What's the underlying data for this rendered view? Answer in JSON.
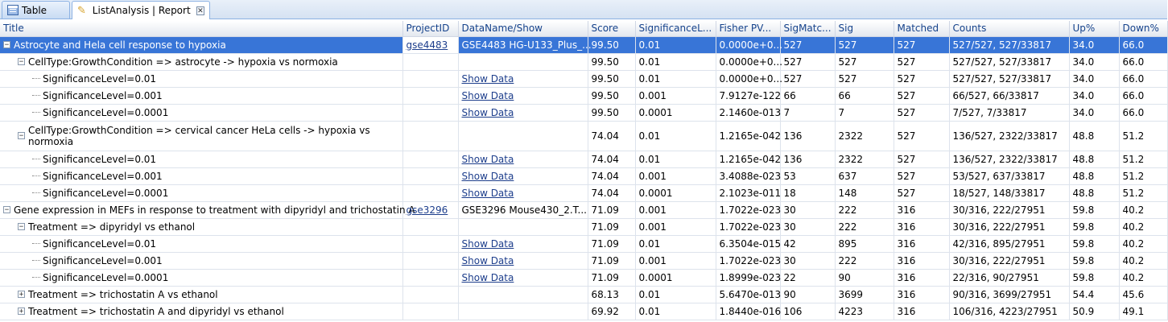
{
  "tabs": [
    {
      "label": "Table",
      "icon": "table-icon"
    },
    {
      "label": "ListAnalysis | Report",
      "icon": "pen-icon",
      "close": "✕"
    }
  ],
  "columns": [
    "Title",
    "ProjectID",
    "DataName/Show",
    "Score",
    "SignificanceL...",
    "Fisher PV...",
    "SigMatc...",
    "Sig",
    "Matched",
    "Counts",
    "Up%",
    "Down%"
  ],
  "rows": [
    {
      "level": 0,
      "expander": "−",
      "title": "Astrocyte and Hela cell response to hypoxia",
      "project": "gse4483",
      "dataname": "GSE4483 HG-U133_Plus_...",
      "score": "99.50",
      "siglevel": "0.01",
      "fisher": "0.0000e+0...",
      "sigmatch": "527",
      "sig": "527",
      "matched": "527",
      "counts": "527/527, 527/33817",
      "up": "34.0",
      "down": "66.0",
      "selected": true
    },
    {
      "level": 1,
      "expander": "−",
      "title": "CellType:GrowthCondition => astrocyte -> hypoxia vs normoxia",
      "project": "",
      "dataname": "",
      "score": "99.50",
      "siglevel": "0.01",
      "fisher": "0.0000e+0...",
      "sigmatch": "527",
      "sig": "527",
      "matched": "527",
      "counts": "527/527, 527/33817",
      "up": "34.0",
      "down": "66.0"
    },
    {
      "level": 2,
      "title": "SignificanceLevel=0.01",
      "project": "",
      "dataname": "Show Data",
      "score": "99.50",
      "siglevel": "0.01",
      "fisher": "0.0000e+0...",
      "sigmatch": "527",
      "sig": "527",
      "matched": "527",
      "counts": "527/527, 527/33817",
      "up": "34.0",
      "down": "66.0"
    },
    {
      "level": 2,
      "title": "SignificanceLevel=0.001",
      "project": "",
      "dataname": "Show Data",
      "score": "99.50",
      "siglevel": "0.001",
      "fisher": "7.9127e-122",
      "sigmatch": "66",
      "sig": "66",
      "matched": "527",
      "counts": "66/527, 66/33817",
      "up": "34.0",
      "down": "66.0"
    },
    {
      "level": 2,
      "title": "SignificanceLevel=0.0001",
      "project": "",
      "dataname": "Show Data",
      "score": "99.50",
      "siglevel": "0.0001",
      "fisher": "2.1460e-013",
      "sigmatch": "7",
      "sig": "7",
      "matched": "527",
      "counts": "7/527, 7/33817",
      "up": "34.0",
      "down": "66.0"
    },
    {
      "level": 1,
      "expander": "−",
      "title": "CellType:GrowthCondition => cervical cancer HeLa cells -> hypoxia vs normoxia",
      "project": "",
      "dataname": "",
      "score": "74.04",
      "siglevel": "0.01",
      "fisher": "1.2165e-042",
      "sigmatch": "136",
      "sig": "2322",
      "matched": "527",
      "counts": "136/527, 2322/33817",
      "up": "48.8",
      "down": "51.2",
      "tall": true
    },
    {
      "level": 2,
      "title": "SignificanceLevel=0.01",
      "project": "",
      "dataname": "Show Data",
      "score": "74.04",
      "siglevel": "0.01",
      "fisher": "1.2165e-042",
      "sigmatch": "136",
      "sig": "2322",
      "matched": "527",
      "counts": "136/527, 2322/33817",
      "up": "48.8",
      "down": "51.2"
    },
    {
      "level": 2,
      "title": "SignificanceLevel=0.001",
      "project": "",
      "dataname": "Show Data",
      "score": "74.04",
      "siglevel": "0.001",
      "fisher": "3.4088e-023",
      "sigmatch": "53",
      "sig": "637",
      "matched": "527",
      "counts": "53/527, 637/33817",
      "up": "48.8",
      "down": "51.2"
    },
    {
      "level": 2,
      "title": "SignificanceLevel=0.0001",
      "project": "",
      "dataname": "Show Data",
      "score": "74.04",
      "siglevel": "0.0001",
      "fisher": "2.1023e-011",
      "sigmatch": "18",
      "sig": "148",
      "matched": "527",
      "counts": "18/527, 148/33817",
      "up": "48.8",
      "down": "51.2"
    },
    {
      "level": 0,
      "expander": "−",
      "title": "Gene expression in MEFs in response to treatment with dipyridyl and trichostatin A",
      "project": "gse3296",
      "dataname": "GSE3296 Mouse430_2.T...",
      "score": "71.09",
      "siglevel": "0.001",
      "fisher": "1.7022e-023",
      "sigmatch": "30",
      "sig": "222",
      "matched": "316",
      "counts": "30/316, 222/27951",
      "up": "59.8",
      "down": "40.2"
    },
    {
      "level": 1,
      "expander": "−",
      "title": "Treatment => dipyridyl vs ethanol",
      "project": "",
      "dataname": "",
      "score": "71.09",
      "siglevel": "0.001",
      "fisher": "1.7022e-023",
      "sigmatch": "30",
      "sig": "222",
      "matched": "316",
      "counts": "30/316, 222/27951",
      "up": "59.8",
      "down": "40.2"
    },
    {
      "level": 2,
      "title": "SignificanceLevel=0.01",
      "project": "",
      "dataname": "Show Data",
      "score": "71.09",
      "siglevel": "0.01",
      "fisher": "6.3504e-015",
      "sigmatch": "42",
      "sig": "895",
      "matched": "316",
      "counts": "42/316, 895/27951",
      "up": "59.8",
      "down": "40.2"
    },
    {
      "level": 2,
      "title": "SignificanceLevel=0.001",
      "project": "",
      "dataname": "Show Data",
      "score": "71.09",
      "siglevel": "0.001",
      "fisher": "1.7022e-023",
      "sigmatch": "30",
      "sig": "222",
      "matched": "316",
      "counts": "30/316, 222/27951",
      "up": "59.8",
      "down": "40.2"
    },
    {
      "level": 2,
      "title": "SignificanceLevel=0.0001",
      "project": "",
      "dataname": "Show Data",
      "score": "71.09",
      "siglevel": "0.0001",
      "fisher": "1.8999e-023",
      "sigmatch": "22",
      "sig": "90",
      "matched": "316",
      "counts": "22/316, 90/27951",
      "up": "59.8",
      "down": "40.2"
    },
    {
      "level": 1,
      "expander": "+",
      "title": "Treatment => trichostatin A vs ethanol",
      "project": "",
      "dataname": "",
      "score": "68.13",
      "siglevel": "0.01",
      "fisher": "5.6470e-013",
      "sigmatch": "90",
      "sig": "3699",
      "matched": "316",
      "counts": "90/316, 3699/27951",
      "up": "54.4",
      "down": "45.6"
    },
    {
      "level": 1,
      "expander": "+",
      "title": "Treatment => trichostatin A and dipyridyl vs ethanol",
      "project": "",
      "dataname": "",
      "score": "69.92",
      "siglevel": "0.01",
      "fisher": "1.8440e-016",
      "sigmatch": "106",
      "sig": "4223",
      "matched": "316",
      "counts": "106/316, 4223/27951",
      "up": "50.9",
      "down": "49.1"
    }
  ],
  "colors": {
    "selected_row": "#3875d7",
    "link": "#1d3e8c",
    "header_text": "#15428b",
    "grid_line": "#dde3ec"
  }
}
